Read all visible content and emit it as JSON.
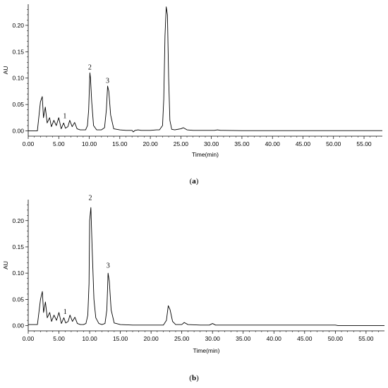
{
  "chart_data": [
    {
      "type": "line",
      "panel_label_open": "(",
      "panel_label_letter": "a",
      "panel_label_close": ")",
      "xlabel": "Time(min)",
      "ylabel": "AU",
      "xlim": [
        0,
        58
      ],
      "ylim": [
        -0.01,
        0.24
      ],
      "xticks": [
        0,
        5,
        10,
        15,
        20,
        25,
        30,
        35,
        40,
        45,
        50,
        55
      ],
      "xtick_labels": [
        "0.00",
        "5.00",
        "10.00",
        "15.00",
        "20.00",
        "25.00",
        "30.00",
        "35.00",
        "40.00",
        "45.00",
        "50.00",
        "55.00"
      ],
      "yticks": [
        0,
        0.05,
        0.1,
        0.15,
        0.2
      ],
      "ytick_labels": [
        "0.00",
        "0.05",
        "0.10",
        "0.15",
        "0.20"
      ],
      "line_color": "#000000",
      "series": [
        {
          "x": [
            0,
            1.5,
            2.0,
            2.3,
            2.5,
            2.8,
            3.1,
            3.5,
            3.8,
            4.2,
            4.6,
            5.0,
            5.4,
            5.8,
            6.1,
            6.5,
            6.8,
            7.2,
            7.6,
            8.0,
            8.5,
            9.0,
            9.4,
            9.7,
            9.9,
            10.1,
            10.2,
            10.4,
            10.7,
            11.2,
            12.0,
            12.5,
            12.8,
            13.0,
            13.2,
            13.5,
            14.0,
            15.0,
            16.0,
            17.0,
            17.2,
            17.5,
            18.0,
            18.5,
            19.0,
            20.0,
            21.0,
            21.5,
            22.0,
            22.2,
            22.4,
            22.6,
            22.8,
            23.0,
            23.2,
            23.5,
            24.0,
            25.0,
            25.4,
            26.0,
            27.0,
            28.0,
            29.0,
            30.0,
            30.5,
            31.0,
            31.5,
            32.0,
            35.0,
            40.0,
            45.0,
            50.0,
            55.0,
            58.0
          ],
          "y": [
            0.0,
            0.0,
            0.055,
            0.065,
            0.025,
            0.045,
            0.015,
            0.025,
            0.008,
            0.02,
            0.01,
            0.025,
            0.004,
            0.015,
            0.005,
            0.008,
            0.02,
            0.008,
            0.016,
            0.004,
            0.002,
            0.002,
            0.002,
            0.01,
            0.04,
            0.11,
            0.1,
            0.055,
            0.01,
            0.002,
            0.002,
            0.006,
            0.04,
            0.085,
            0.075,
            0.03,
            0.004,
            0.002,
            0.001,
            0.001,
            -0.002,
            0.001,
            0.002,
            0.001,
            0.001,
            0.001,
            0.002,
            0.002,
            0.01,
            0.06,
            0.18,
            0.235,
            0.22,
            0.1,
            0.02,
            0.003,
            0.002,
            0.004,
            0.006,
            0.002,
            0.001,
            0.001,
            0.001,
            0.001,
            0.001,
            0.002,
            0.001,
            0.001,
            0.0005,
            0.0005,
            0.0005,
            0.0005,
            0.0005,
            0.0005
          ]
        }
      ],
      "annotations": [
        {
          "text": "1",
          "x": 6.0,
          "y": 0.02
        },
        {
          "text": "2",
          "x": 10.1,
          "y": 0.112
        },
        {
          "text": "3",
          "x": 13.0,
          "y": 0.087
        }
      ]
    },
    {
      "type": "line",
      "panel_label_open": "(",
      "panel_label_letter": "b",
      "panel_label_close": ")",
      "xlabel": "Time(min)",
      "ylabel": "AU",
      "xlim": [
        0,
        58
      ],
      "ylim": [
        -0.01,
        0.24
      ],
      "xticks": [
        0,
        5,
        10,
        15,
        20,
        25,
        30,
        35,
        40,
        45,
        50,
        55
      ],
      "xtick_labels": [
        "0.00",
        "5.00",
        "10.00",
        "15.00",
        "20.00",
        "25.00",
        "30.00",
        "35.00",
        "40.00",
        "45.00",
        "50.00",
        "55.00"
      ],
      "yticks": [
        0,
        0.05,
        0.1,
        0.15,
        0.2
      ],
      "ytick_labels": [
        "0.00",
        "0.05",
        "0.10",
        "0.15",
        "0.20"
      ],
      "line_color": "#000000",
      "series": [
        {
          "x": [
            0,
            1.5,
            2.0,
            2.3,
            2.5,
            2.8,
            3.1,
            3.5,
            3.8,
            4.2,
            4.6,
            5.0,
            5.4,
            5.8,
            6.1,
            6.5,
            6.8,
            7.2,
            7.6,
            8.0,
            8.5,
            9.0,
            9.4,
            9.7,
            9.9,
            10.0,
            10.2,
            10.4,
            10.7,
            11.0,
            11.5,
            12.0,
            12.5,
            12.8,
            13.0,
            13.2,
            13.5,
            14.0,
            15.0,
            17.0,
            20.0,
            22.0,
            22.5,
            22.8,
            23.1,
            23.5,
            24.0,
            25.0,
            25.4,
            26.0,
            28.0,
            29.5,
            30.0,
            30.5,
            31.0,
            35.0,
            40.0,
            45.0,
            50.0,
            50.5,
            55.0,
            58.0
          ],
          "y": [
            0.002,
            0.002,
            0.05,
            0.065,
            0.025,
            0.045,
            0.015,
            0.025,
            0.008,
            0.02,
            0.01,
            0.025,
            0.004,
            0.015,
            0.005,
            0.008,
            0.02,
            0.008,
            0.016,
            0.004,
            0.002,
            0.002,
            0.004,
            0.02,
            0.08,
            0.2,
            0.225,
            0.15,
            0.05,
            0.015,
            0.004,
            0.002,
            0.004,
            0.03,
            0.1,
            0.085,
            0.03,
            0.005,
            0.002,
            0.001,
            0.001,
            0.001,
            0.01,
            0.038,
            0.03,
            0.008,
            0.002,
            0.002,
            0.006,
            0.002,
            0.001,
            0.001,
            0.004,
            0.001,
            0.001,
            0.001,
            0.001,
            0.001,
            0.001,
            0.0,
            0.0,
            0.0
          ]
        }
      ],
      "annotations": [
        {
          "text": "1",
          "x": 6.0,
          "y": 0.018
        },
        {
          "text": "2",
          "x": 10.1,
          "y": 0.235
        },
        {
          "text": "3",
          "x": 13.0,
          "y": 0.106
        }
      ]
    }
  ]
}
